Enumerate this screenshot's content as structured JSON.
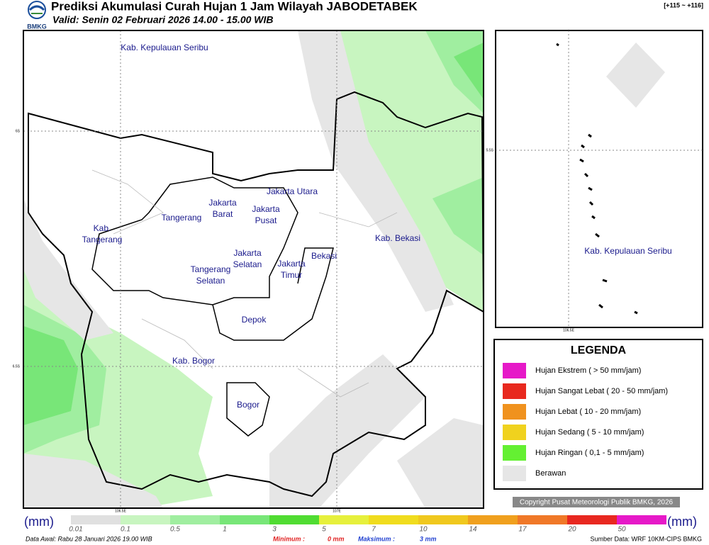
{
  "header": {
    "title": "Prediksi Akumulasi Curah Hujan 1 Jam Wilayah JABODETABEK",
    "valid": "Valid: Senin 02 Februari 2026 14.00 - 15.00 WIB",
    "range": "[+115 ~ +116]",
    "logo": "BMKG"
  },
  "map": {
    "labels": [
      {
        "lines": [
          "Kab. Kepulauan Seribu"
        ]
      },
      {
        "lines": [
          "Jakarta Utara"
        ]
      },
      {
        "lines": [
          "Jakarta",
          "Barat"
        ]
      },
      {
        "lines": [
          "Jakarta",
          "Pusat"
        ]
      },
      {
        "lines": [
          "Tangerang"
        ]
      },
      {
        "lines": [
          "Kab.",
          "Tangerang"
        ]
      },
      {
        "lines": [
          "Kab. Bekasi"
        ]
      },
      {
        "lines": [
          "Jakarta",
          "Selatan"
        ]
      },
      {
        "lines": [
          "Jakarta",
          "Timur"
        ]
      },
      {
        "lines": [
          "Bekasi"
        ]
      },
      {
        "lines": [
          "Tangerang",
          "Selatan"
        ]
      },
      {
        "lines": [
          "Depok"
        ]
      },
      {
        "lines": [
          "Kab. Bogor"
        ]
      },
      {
        "lines": [
          "Bogor"
        ]
      }
    ],
    "lat_ticks": [
      "6S",
      "6.5S"
    ],
    "lon_ticks": [
      "106.5E",
      "107E"
    ]
  },
  "inset": {
    "label": "Kab. Kepulauan Seribu",
    "lat_tick": "5.5S",
    "lon_tick": "106.5E"
  },
  "legend": {
    "title": "LEGENDA",
    "items": [
      {
        "label": "Hujan Ekstrem ( > 50 mm/jam)",
        "color": "#e619c8"
      },
      {
        "label": "Hujan Sangat Lebat ( 20 - 50 mm/jam)",
        "color": "#e8281e"
      },
      {
        "label": "Hujan Lebat ( 10 - 20 mm/jam)",
        "color": "#f0921e"
      },
      {
        "label": "Hujan Sedang ( 5 - 10 mm/jam)",
        "color": "#f0d21e"
      },
      {
        "label": "Hujan Ringan ( 0,1 - 5 mm/jam)",
        "color": "#64f032"
      },
      {
        "label": "Berawan",
        "color": "#e6e6e6"
      }
    ]
  },
  "copyright": "Copyright Pusat Meteorologi Publik BMKG, 2026",
  "colorbar": {
    "unit": "(mm)",
    "ticks": [
      "0.01",
      "0.1",
      "0.5",
      "1",
      "3",
      "5",
      "7",
      "10",
      "14",
      "17",
      "20",
      "50"
    ],
    "colors": [
      "#e0e0e0",
      "#c8f5c0",
      "#a0eea0",
      "#78e678",
      "#50dc32",
      "#e6f03c",
      "#f0dc1e",
      "#f0c81e",
      "#f0a01e",
      "#f07828",
      "#e82820",
      "#e619c8"
    ]
  },
  "footer": {
    "start": "Data Awal: Rabu 28 Januari 2026 19.00 WIB",
    "min_label": "Minimum :",
    "min_value": "0 mm",
    "max_label": "Maksimum :",
    "max_value": "3 mm",
    "source": "Sumber Data: WRF 10KM-CIPS BMKG"
  }
}
